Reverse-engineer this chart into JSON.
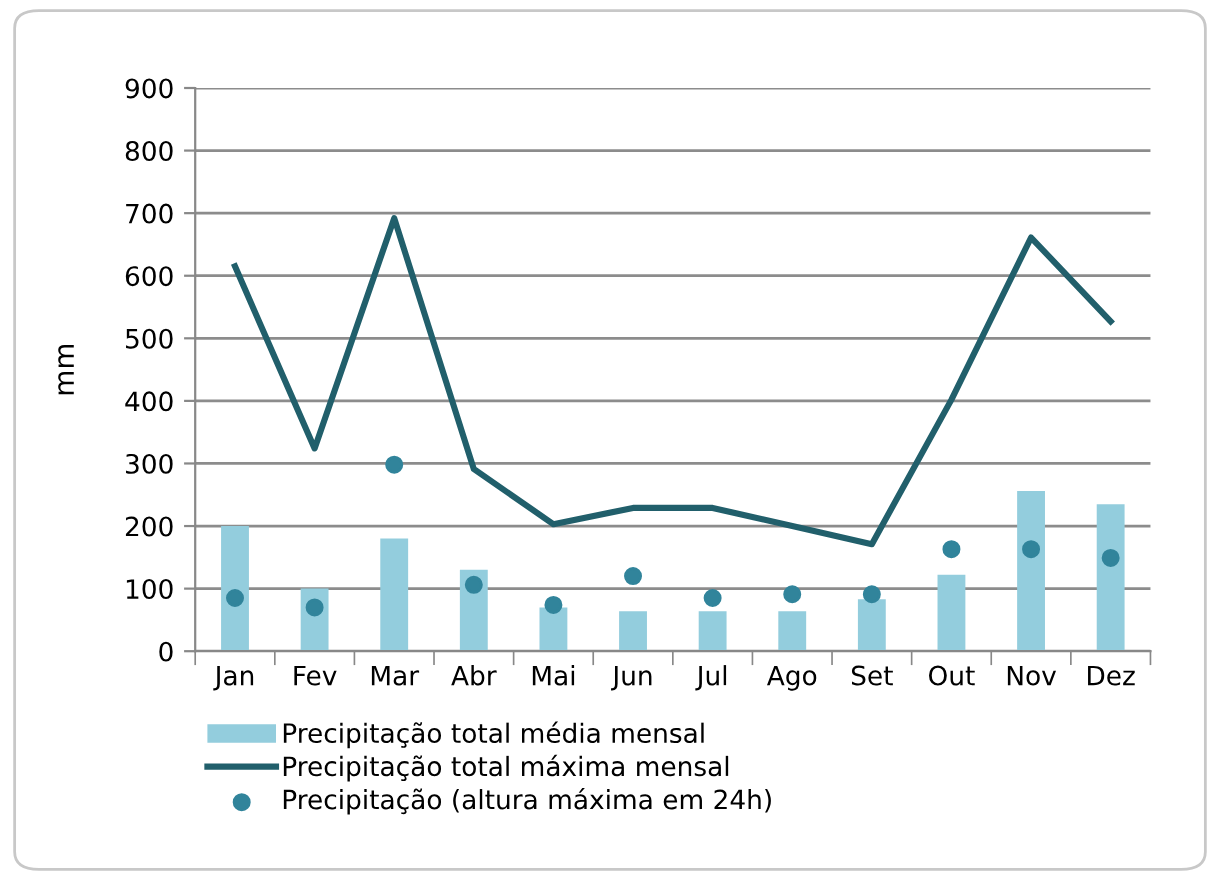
{
  "chart_data": {
    "type": "bar",
    "ylabel": "mm",
    "categories": [
      "Jan",
      "Fev",
      "Mar",
      "Abr",
      "Mai",
      "Jun",
      "Jul",
      "Ago",
      "Set",
      "Out",
      "Nov",
      "Dez"
    ],
    "series": [
      {
        "name": "Precipitação total média mensal",
        "color": "#93cddd",
        "values": [
          200,
          100,
          180,
          130,
          70,
          64,
          64,
          64,
          83,
          122,
          256,
          235
        ]
      },
      {
        "name": "Precipitação total máxima mensal",
        "type": "line",
        "color": "#215f6b",
        "values": [
          615,
          324,
          692,
          291,
          203,
          229,
          229,
          200,
          171,
          402,
          661,
          527
        ]
      },
      {
        "name": "Precipitação (altura máxima em 24h)",
        "type": "scatter",
        "marker": "circle",
        "color": "#31849b",
        "values": [
          85,
          70,
          298,
          106,
          74,
          120,
          85,
          91,
          91,
          163,
          163,
          149
        ]
      }
    ],
    "ylim": [
      0,
      900
    ],
    "yticks": [
      0,
      100,
      200,
      300,
      400,
      500,
      600,
      700,
      800,
      900
    ],
    "grid": "y",
    "legend": "bottom"
  }
}
